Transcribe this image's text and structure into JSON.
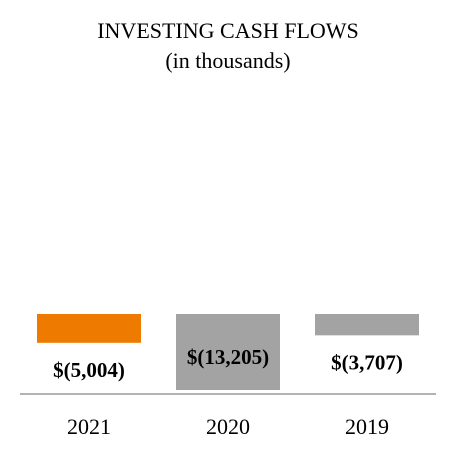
{
  "chart_data": {
    "type": "bar",
    "title": "INVESTING CASH FLOWS",
    "subtitle": "(in thousands)",
    "categories": [
      "2021",
      "2020",
      "2019"
    ],
    "values": [
      -5004,
      -13205,
      -3707
    ],
    "value_labels": [
      "$(5,004)",
      "$(13,205)",
      "$(3,707)"
    ],
    "colors": [
      "#EE7A00",
      "#A3A3A3",
      "#A3A3A3"
    ],
    "ylim": [
      -13205,
      0
    ],
    "grid": false,
    "legend": "none"
  }
}
